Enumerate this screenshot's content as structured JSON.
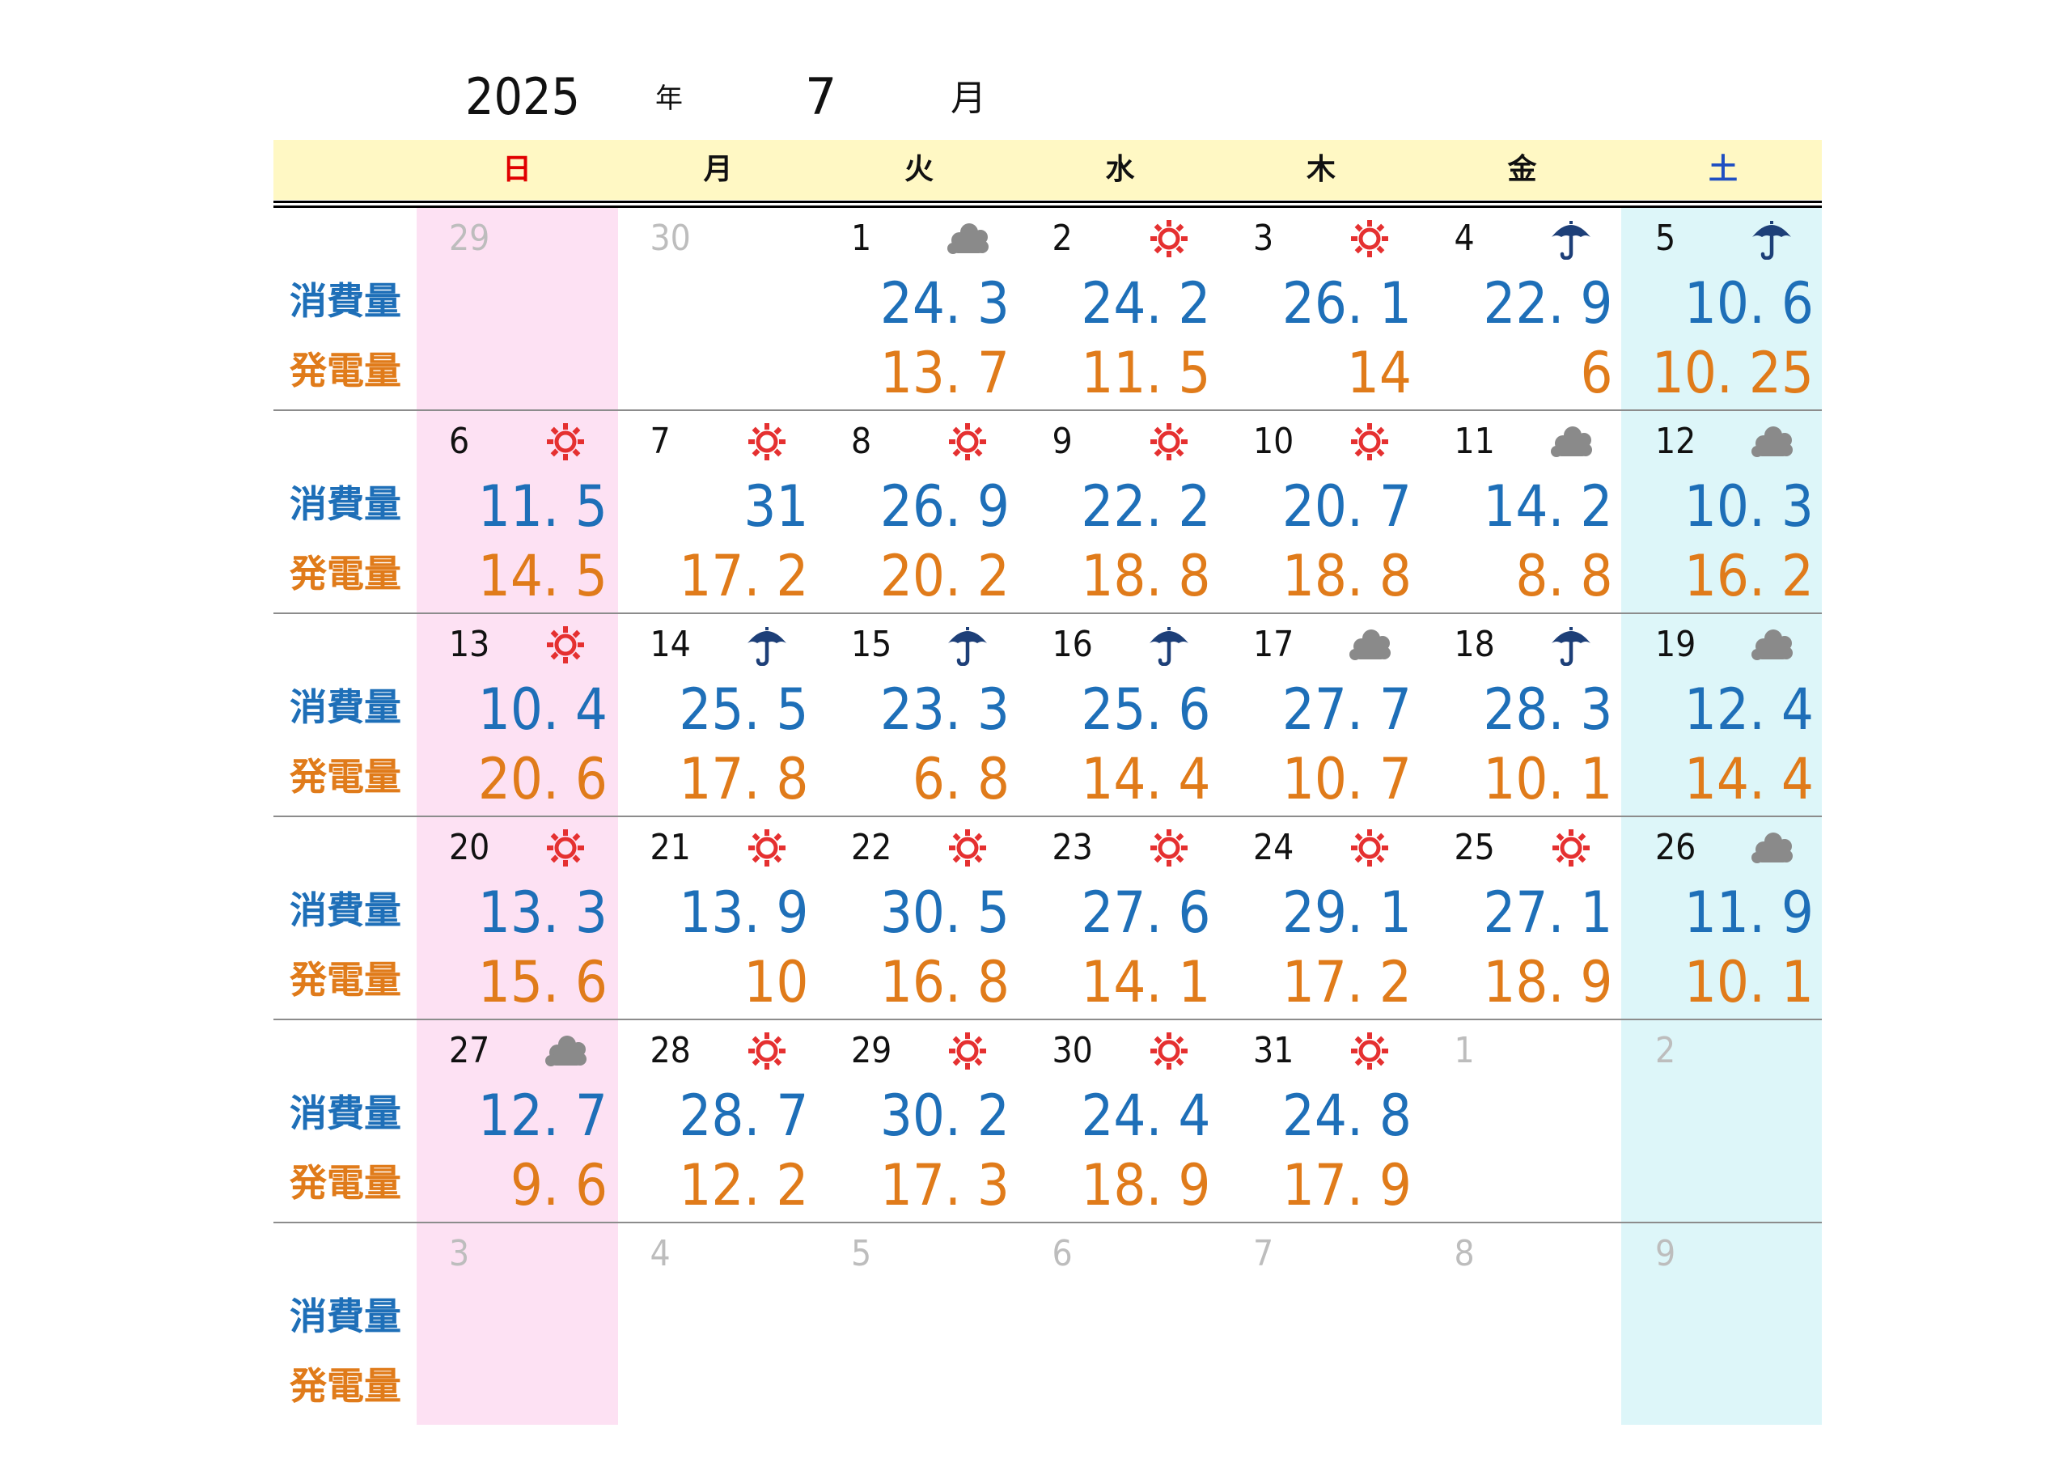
{
  "header": {
    "year": "2025",
    "year_label": "年",
    "month": "7",
    "month_label": "月"
  },
  "weekdays": [
    "日",
    "月",
    "火",
    "水",
    "木",
    "金",
    "土"
  ],
  "row_labels": {
    "consumption": "消費量",
    "generation": "発電量"
  },
  "colors": {
    "consumption": "#1e6fb8",
    "generation": "#e07b1a",
    "sunday_bg": "#fde1f3",
    "saturday_bg": "#ddf6f9",
    "header_bg": "#fff8c4",
    "sunny_icon": "#e53030",
    "rain_icon": "#1d3f78",
    "cloudy_icon": "#8a8a8a"
  },
  "weeks": [
    [
      {
        "day": "29",
        "other": true,
        "weather": "",
        "cons": "",
        "gen": ""
      },
      {
        "day": "30",
        "other": true,
        "weather": "",
        "cons": "",
        "gen": ""
      },
      {
        "day": "1",
        "weather": "cloudy-icon",
        "cons": "24. 3",
        "gen": "13. 7"
      },
      {
        "day": "2",
        "weather": "sun-icon",
        "cons": "24. 2",
        "gen": "11. 5"
      },
      {
        "day": "3",
        "weather": "sun-icon",
        "cons": "26. 1",
        "gen": "14"
      },
      {
        "day": "4",
        "weather": "umbrella-icon",
        "cons": "22. 9",
        "gen": "6"
      },
      {
        "day": "5",
        "weather": "umbrella-icon",
        "cons": "10. 6",
        "gen": "10. 25"
      }
    ],
    [
      {
        "day": "6",
        "weather": "sun-icon",
        "cons": "11. 5",
        "gen": "14. 5"
      },
      {
        "day": "7",
        "weather": "sun-icon",
        "cons": "31",
        "gen": "17. 2"
      },
      {
        "day": "8",
        "weather": "sun-icon",
        "cons": "26. 9",
        "gen": "20. 2"
      },
      {
        "day": "9",
        "weather": "sun-icon",
        "cons": "22. 2",
        "gen": "18. 8"
      },
      {
        "day": "10",
        "weather": "sun-icon",
        "cons": "20. 7",
        "gen": "18. 8"
      },
      {
        "day": "11",
        "weather": "cloudy-icon",
        "cons": "14. 2",
        "gen": "8. 8"
      },
      {
        "day": "12",
        "weather": "cloudy-icon",
        "cons": "10. 3",
        "gen": "16. 2"
      }
    ],
    [
      {
        "day": "13",
        "weather": "sun-icon",
        "cons": "10. 4",
        "gen": "20. 6"
      },
      {
        "day": "14",
        "weather": "umbrella-icon",
        "cons": "25. 5",
        "gen": "17. 8"
      },
      {
        "day": "15",
        "weather": "umbrella-icon",
        "cons": "23. 3",
        "gen": "6. 8"
      },
      {
        "day": "16",
        "weather": "umbrella-icon",
        "cons": "25. 6",
        "gen": "14. 4"
      },
      {
        "day": "17",
        "weather": "cloudy-icon",
        "cons": "27. 7",
        "gen": "10. 7"
      },
      {
        "day": "18",
        "weather": "umbrella-icon",
        "cons": "28. 3",
        "gen": "10. 1"
      },
      {
        "day": "19",
        "weather": "cloudy-icon",
        "cons": "12. 4",
        "gen": "14. 4"
      }
    ],
    [
      {
        "day": "20",
        "weather": "sun-icon",
        "cons": "13. 3",
        "gen": "15. 6"
      },
      {
        "day": "21",
        "weather": "sun-icon",
        "cons": "13. 9",
        "gen": "10"
      },
      {
        "day": "22",
        "weather": "sun-icon",
        "cons": "30. 5",
        "gen": "16. 8"
      },
      {
        "day": "23",
        "weather": "sun-icon",
        "cons": "27. 6",
        "gen": "14. 1"
      },
      {
        "day": "24",
        "weather": "sun-icon",
        "cons": "29. 1",
        "gen": "17. 2"
      },
      {
        "day": "25",
        "weather": "sun-icon",
        "cons": "27. 1",
        "gen": "18. 9"
      },
      {
        "day": "26",
        "weather": "cloudy-icon",
        "cons": "11. 9",
        "gen": "10. 1"
      }
    ],
    [
      {
        "day": "27",
        "weather": "cloudy-icon",
        "cons": "12. 7",
        "gen": "9. 6"
      },
      {
        "day": "28",
        "weather": "sun-icon",
        "cons": "28. 7",
        "gen": "12. 2"
      },
      {
        "day": "29",
        "weather": "sun-icon",
        "cons": "30. 2",
        "gen": "17. 3"
      },
      {
        "day": "30",
        "weather": "sun-icon",
        "cons": "24. 4",
        "gen": "18. 9"
      },
      {
        "day": "31",
        "weather": "sun-icon",
        "cons": "24. 8",
        "gen": "17. 9"
      },
      {
        "day": "1",
        "other": true,
        "weather": "",
        "cons": "",
        "gen": ""
      },
      {
        "day": "2",
        "other": true,
        "weather": "",
        "cons": "",
        "gen": ""
      }
    ],
    [
      {
        "day": "3",
        "other": true,
        "weather": "",
        "cons": "",
        "gen": ""
      },
      {
        "day": "4",
        "other": true,
        "weather": "",
        "cons": "",
        "gen": ""
      },
      {
        "day": "5",
        "other": true,
        "weather": "",
        "cons": "",
        "gen": ""
      },
      {
        "day": "6",
        "other": true,
        "weather": "",
        "cons": "",
        "gen": ""
      },
      {
        "day": "7",
        "other": true,
        "weather": "",
        "cons": "",
        "gen": ""
      },
      {
        "day": "8",
        "other": true,
        "weather": "",
        "cons": "",
        "gen": ""
      },
      {
        "day": "9",
        "other": true,
        "weather": "",
        "cons": "",
        "gen": ""
      }
    ]
  ]
}
